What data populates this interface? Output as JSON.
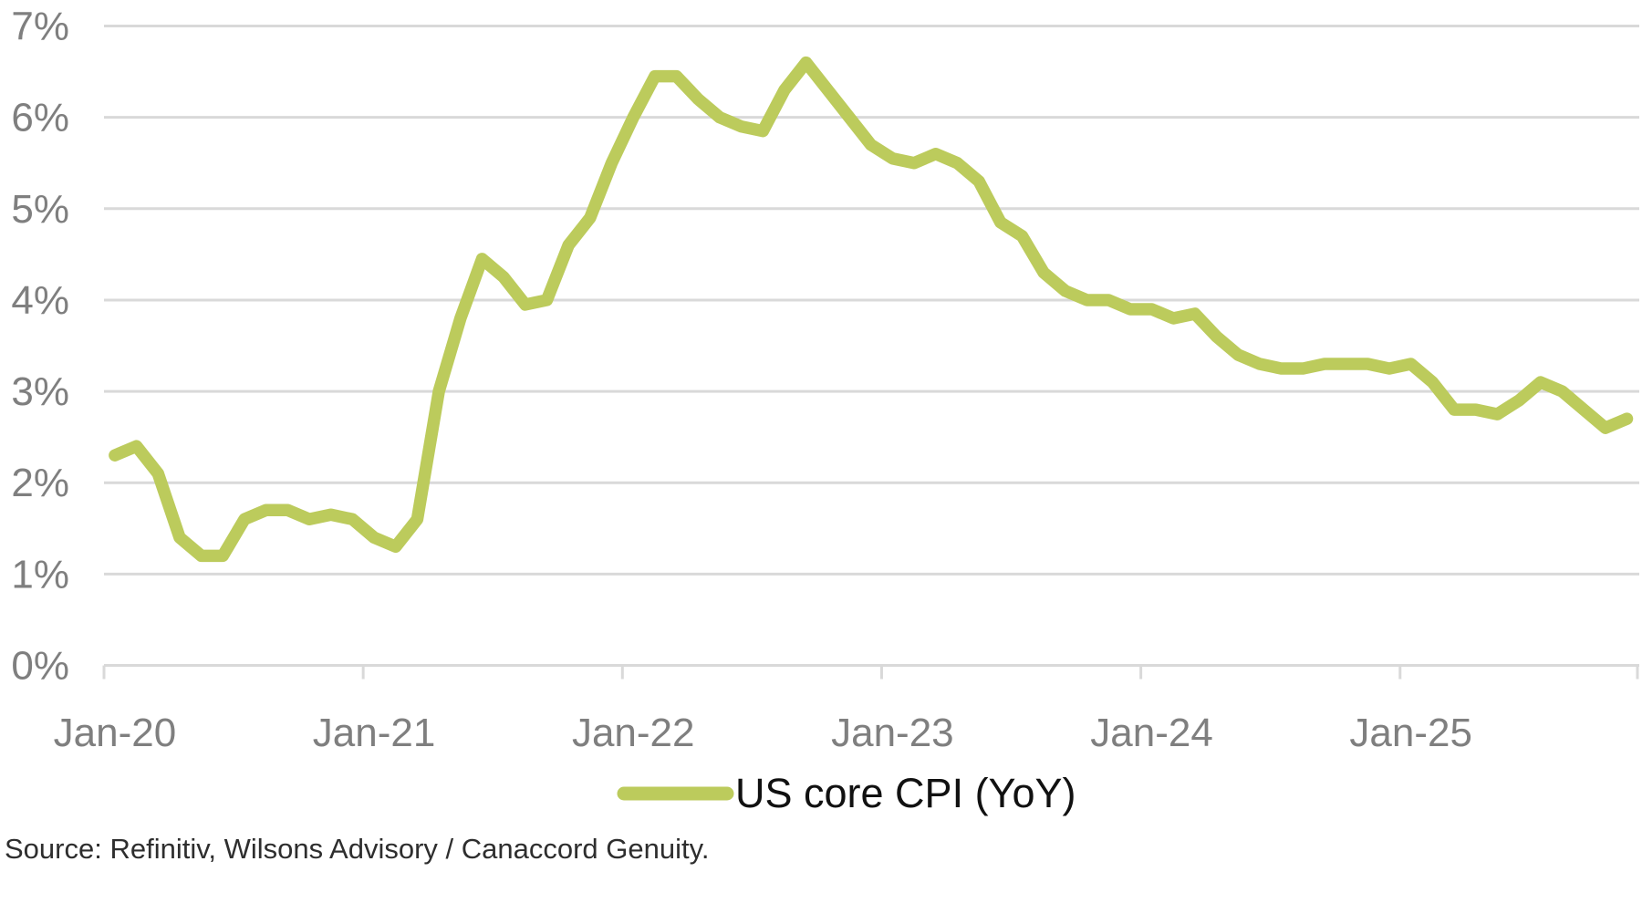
{
  "chart_data": {
    "type": "line",
    "title": "",
    "xlabel": "",
    "ylabel": "",
    "ylim": [
      0,
      7
    ],
    "grid": "horizontal",
    "legend_position": "bottom-center",
    "y_tick_labels": [
      "0%",
      "1%",
      "2%",
      "3%",
      "4%",
      "5%",
      "6%",
      "7%"
    ],
    "x_tick_labels": [
      "Jan-20",
      "Jan-21",
      "Jan-22",
      "Jan-23",
      "Jan-24",
      "Jan-25"
    ],
    "categories": [
      "Jan-20",
      "Feb-20",
      "Mar-20",
      "Apr-20",
      "May-20",
      "Jun-20",
      "Jul-20",
      "Aug-20",
      "Sep-20",
      "Oct-20",
      "Nov-20",
      "Dec-20",
      "Jan-21",
      "Feb-21",
      "Mar-21",
      "Apr-21",
      "May-21",
      "Jun-21",
      "Jul-21",
      "Aug-21",
      "Sep-21",
      "Oct-21",
      "Nov-21",
      "Dec-21",
      "Jan-22",
      "Feb-22",
      "Mar-22",
      "Apr-22",
      "May-22",
      "Jun-22",
      "Jul-22",
      "Aug-22",
      "Sep-22",
      "Oct-22",
      "Nov-22",
      "Dec-22",
      "Jan-23",
      "Feb-23",
      "Mar-23",
      "Apr-23",
      "May-23",
      "Jun-23",
      "Jul-23",
      "Aug-23",
      "Sep-23",
      "Oct-23",
      "Nov-23",
      "Dec-23",
      "Jan-24",
      "Feb-24",
      "Mar-24",
      "Apr-24",
      "May-24",
      "Jun-24",
      "Jul-24",
      "Aug-24",
      "Sep-24",
      "Oct-24",
      "Nov-24",
      "Dec-24",
      "Jan-25",
      "Feb-25",
      "Mar-25",
      "Apr-25",
      "May-25",
      "Jun-25",
      "Jul-25",
      "Aug-25",
      "Sep-25",
      "Oct-25",
      "Nov-25"
    ],
    "series": [
      {
        "name": "US core CPI (YoY)",
        "color": "#bccb5c",
        "values": [
          2.3,
          2.4,
          2.1,
          1.4,
          1.2,
          1.2,
          1.6,
          1.7,
          1.7,
          1.6,
          1.65,
          1.6,
          1.4,
          1.3,
          1.6,
          3.0,
          3.8,
          4.45,
          4.25,
          3.95,
          4.0,
          4.6,
          4.9,
          5.5,
          6.0,
          6.45,
          6.45,
          6.2,
          6.0,
          5.9,
          5.85,
          6.3,
          6.6,
          6.3,
          6.0,
          5.7,
          5.55,
          5.5,
          5.6,
          5.5,
          5.3,
          4.85,
          4.7,
          4.3,
          4.1,
          4.0,
          4.0,
          3.9,
          3.9,
          3.8,
          3.85,
          3.6,
          3.4,
          3.3,
          3.25,
          3.25,
          3.3,
          3.3,
          3.3,
          3.25,
          3.3,
          3.1,
          2.8,
          2.8,
          2.75,
          2.9,
          3.1,
          3.0,
          2.8,
          2.6,
          2.7
        ]
      }
    ]
  },
  "legend": {
    "label": "US core CPI (YoY)"
  },
  "footer": {
    "source": "Source: Refinitiv, Wilsons Advisory / Canaccord Genuity."
  },
  "colors": {
    "line": "#bccb5c",
    "gridline": "#d9d9d9",
    "axis": "#d9d9d9",
    "tick_label": "#7f7f7f",
    "legend_text": "#111111",
    "source_text": "#2e2e2e",
    "background": "#ffffff"
  }
}
